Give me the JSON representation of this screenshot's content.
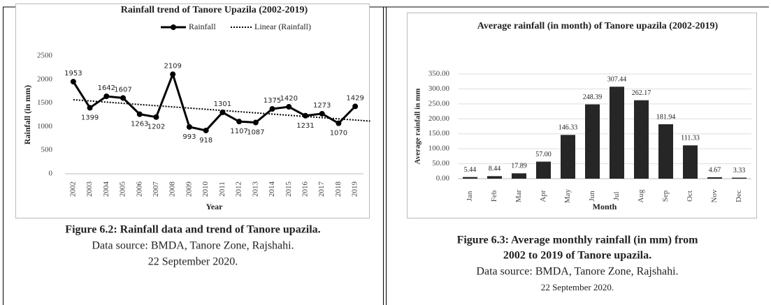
{
  "chart_data": [
    {
      "type": "line",
      "title": "Rainfall trend of Tanore Upazila (2002-2019)",
      "x_label": "Year",
      "y_label": "Rainfall (in mm)",
      "categories": [
        "2002",
        "2003",
        "2004",
        "2005",
        "2006",
        "2007",
        "2008",
        "2009",
        "2010",
        "2011",
        "2012",
        "2013",
        "2014",
        "2015",
        "2016",
        "2017",
        "2018",
        "2019"
      ],
      "series": [
        {
          "name": "Rainfall",
          "color": "#000000",
          "values": [
            1953,
            1399,
            1642,
            1607,
            1263,
            1202,
            2109,
            993,
            918,
            1301,
            1107,
            1087,
            1375,
            1420,
            1231,
            1273,
            1070,
            1429
          ]
        }
      ],
      "trendline": {
        "name": "Linear (Rainfall)",
        "type": "linear",
        "color": "#000000"
      },
      "ylim": [
        0,
        2500
      ],
      "yticks": [
        0,
        500,
        1000,
        1500,
        2000,
        2500
      ],
      "legend": "top",
      "caption": {
        "title": [
          "Figure 6.2: Rainfall data and trend of Tanore upazila."
        ],
        "lines": [
          "Data source: BMDA, Tanore Zone, Rajshahi.",
          "22 September 2020."
        ]
      }
    },
    {
      "type": "bar",
      "title": "Average rainfall (in month) of Tanore upazila (2002-2019)",
      "x_label": "Month",
      "y_label": "Average rainfall in mm",
      "categories": [
        "Jan",
        "Feb",
        "Mar",
        "Apr",
        "May",
        "Jun",
        "Jul",
        "Aug",
        "Sep",
        "Oct",
        "Nov",
        "Dec"
      ],
      "values": [
        5.44,
        8.44,
        17.89,
        57,
        146.33,
        248.39,
        307.44,
        262.17,
        181.94,
        111.33,
        4.67,
        3.33
      ],
      "value_labels": [
        "5.44",
        "8.44",
        "17.89",
        "57.00",
        "146.33",
        "248.39",
        "307.44",
        "262.17",
        "181.94",
        "111.33",
        "4.67",
        "3.33"
      ],
      "color": "#262626",
      "grid": true,
      "ylim": [
        0,
        350
      ],
      "yticks": [
        {
          "value": 0,
          "label": "0.00"
        },
        {
          "value": 50,
          "label": "50.00"
        },
        {
          "value": 100,
          "label": "100.00"
        },
        {
          "value": 150,
          "label": "150.00"
        },
        {
          "value": 200,
          "label": "200.00"
        },
        {
          "value": 250,
          "label": "250.00"
        },
        {
          "value": 300,
          "label": "300.00"
        },
        {
          "value": 350,
          "label": "350.00"
        }
      ],
      "caption": {
        "title": [
          "Figure 6.3:  Average monthly rainfall (in mm) from",
          "2002 to 2019 of Tanore upazila."
        ],
        "lines": [
          "Data source: BMDA, Tanore Zone, Rajshahi.",
          "22 September 2020."
        ]
      }
    }
  ]
}
